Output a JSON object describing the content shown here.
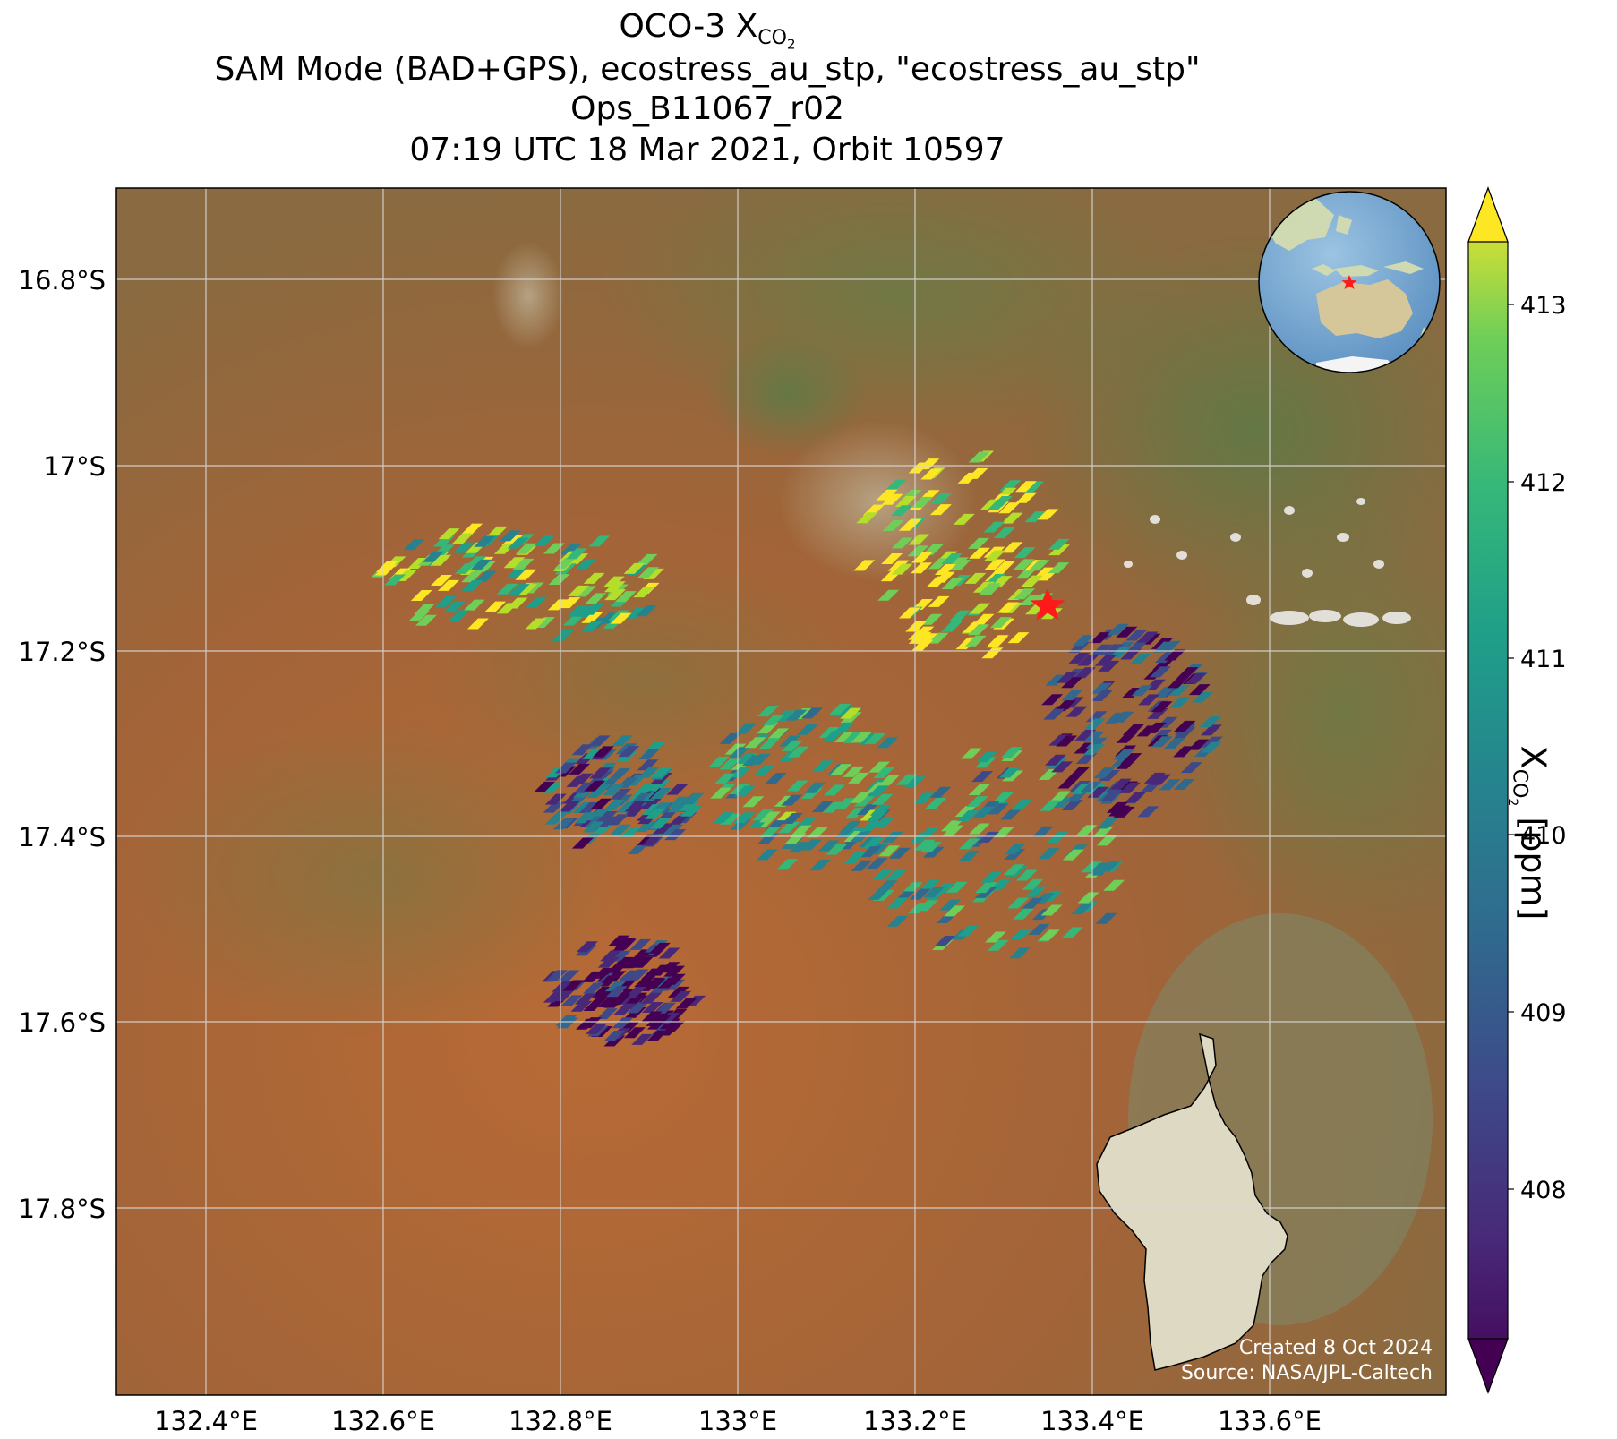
{
  "title": {
    "line1_prefix": "OCO-3 X",
    "line1_sub": "CO",
    "line1_sub2": "2",
    "line2": "SAM Mode (BAD+GPS), ecostress_au_stp, \"ecostress_au_stp\"",
    "line3": "Ops_B11067_r02",
    "line4": "07:19 UTC 18 Mar 2021, Orbit 10597"
  },
  "colorbar": {
    "label_prefix": "X",
    "label_sub": "CO",
    "label_sub2": "2",
    "label_suffix": " [ppm]",
    "ticks": [
      "413",
      "412",
      "411",
      "410",
      "409",
      "408"
    ],
    "range": [
      407.1,
      413.35
    ],
    "colormap": "viridis"
  },
  "axes": {
    "x_ticks": [
      "132.4°E",
      "132.6°E",
      "132.8°E",
      "133°E",
      "133.2°E",
      "133.4°E",
      "133.6°E"
    ],
    "y_ticks": [
      "16.8°S",
      "17°S",
      "17.2°S",
      "17.4°S",
      "17.6°S",
      "17.8°S"
    ],
    "lon_range": [
      132.3,
      133.8
    ],
    "lat_range": [
      -16.7,
      -18.0
    ],
    "grid": true
  },
  "credits": {
    "created": "Created 8 Oct 2024",
    "source": "Source: NASA/JPL-Caltech"
  },
  "target_marker": {
    "lon": 133.35,
    "lat": -17.15,
    "color": "#ff1a1a",
    "symbol": "star"
  },
  "inset_globe": {
    "marker": "star",
    "marker_color": "#ff1a1a",
    "center_region": "Australia"
  },
  "colors": {
    "background_land": "#a8643a",
    "ocean": "#7fb0d6",
    "grid": "#d0d0d0",
    "viridis_low": "#440154",
    "viridis_high": "#fde725"
  },
  "chart_data": {
    "type": "map-scatter",
    "variable": "XCO2 [ppm]",
    "clusters": [
      {
        "lon": 132.745,
        "lat": -17.13,
        "mean_xco2": 411.6
      },
      {
        "lon": 132.855,
        "lat": -17.36,
        "mean_xco2": 409.2
      },
      {
        "lon": 132.86,
        "lat": -17.57,
        "mean_xco2": 407.5
      },
      {
        "lon": 133.07,
        "lat": -17.35,
        "mean_xco2": 410.6
      },
      {
        "lon": 133.245,
        "lat": -17.1,
        "mean_xco2": 412.7
      },
      {
        "lon": 133.28,
        "lat": -17.42,
        "mean_xco2": 410.4
      },
      {
        "lon": 133.43,
        "lat": -17.28,
        "mean_xco2": 408.3
      }
    ]
  }
}
